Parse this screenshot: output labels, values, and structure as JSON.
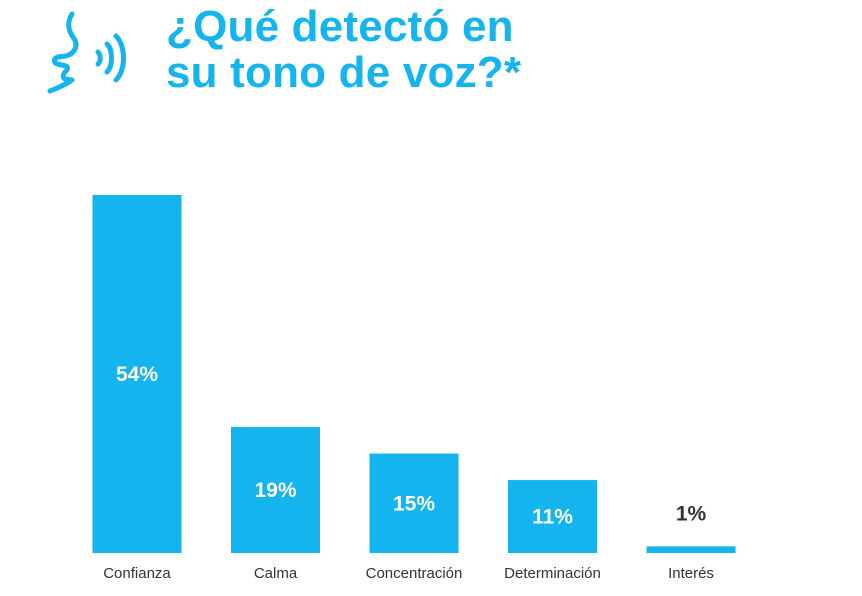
{
  "title": {
    "line1": "¿Qué detectó en",
    "line2": "su tono de voz?*"
  },
  "icon": "speaking-head-icon",
  "colors": {
    "accent": "#14b4ee",
    "text": "#333333"
  },
  "chart_data": {
    "type": "bar",
    "categories": [
      "Confianza",
      "Calma",
      "Concentración",
      "Determinación",
      "Interés"
    ],
    "values": [
      54,
      19,
      15,
      11,
      1
    ],
    "value_labels": [
      "54%",
      "19%",
      "15%",
      "11%",
      "1%"
    ],
    "ylim": [
      0,
      54
    ],
    "grid": false
  }
}
